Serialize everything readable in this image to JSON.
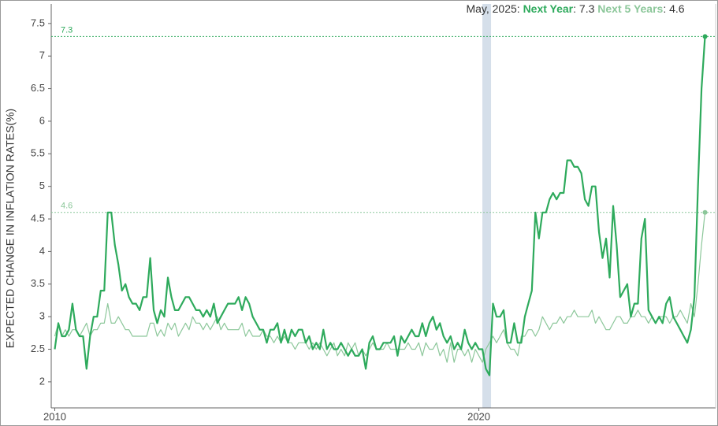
{
  "chart_data": {
    "type": "line",
    "y_label": "EXPECTED CHANGE IN INFLATION RATES(%)",
    "tooltip_date": "May, 2025",
    "x": [
      "2010-01",
      "2010-02",
      "2010-03",
      "2010-04",
      "2010-05",
      "2010-06",
      "2010-07",
      "2010-08",
      "2010-09",
      "2010-10",
      "2010-11",
      "2010-12",
      "2011-01",
      "2011-02",
      "2011-03",
      "2011-04",
      "2011-05",
      "2011-06",
      "2011-07",
      "2011-08",
      "2011-09",
      "2011-10",
      "2011-11",
      "2011-12",
      "2012-01",
      "2012-02",
      "2012-03",
      "2012-04",
      "2012-05",
      "2012-06",
      "2012-07",
      "2012-08",
      "2012-09",
      "2012-10",
      "2012-11",
      "2012-12",
      "2013-01",
      "2013-02",
      "2013-03",
      "2013-04",
      "2013-05",
      "2013-06",
      "2013-07",
      "2013-08",
      "2013-09",
      "2013-10",
      "2013-11",
      "2013-12",
      "2014-01",
      "2014-02",
      "2014-03",
      "2014-04",
      "2014-05",
      "2014-06",
      "2014-07",
      "2014-08",
      "2014-09",
      "2014-10",
      "2014-11",
      "2014-12",
      "2015-01",
      "2015-02",
      "2015-03",
      "2015-04",
      "2015-05",
      "2015-06",
      "2015-07",
      "2015-08",
      "2015-09",
      "2015-10",
      "2015-11",
      "2015-12",
      "2016-01",
      "2016-02",
      "2016-03",
      "2016-04",
      "2016-05",
      "2016-06",
      "2016-07",
      "2016-08",
      "2016-09",
      "2016-10",
      "2016-11",
      "2016-12",
      "2017-01",
      "2017-02",
      "2017-03",
      "2017-04",
      "2017-05",
      "2017-06",
      "2017-07",
      "2017-08",
      "2017-09",
      "2017-10",
      "2017-11",
      "2017-12",
      "2018-01",
      "2018-02",
      "2018-03",
      "2018-04",
      "2018-05",
      "2018-06",
      "2018-07",
      "2018-08",
      "2018-09",
      "2018-10",
      "2018-11",
      "2018-12",
      "2019-01",
      "2019-02",
      "2019-03",
      "2019-04",
      "2019-05",
      "2019-06",
      "2019-07",
      "2019-08",
      "2019-09",
      "2019-10",
      "2019-11",
      "2019-12",
      "2020-01",
      "2020-02",
      "2020-03",
      "2020-04",
      "2020-05",
      "2020-06",
      "2020-07",
      "2020-08",
      "2020-09",
      "2020-10",
      "2020-11",
      "2020-12",
      "2021-01",
      "2021-02",
      "2021-03",
      "2021-04",
      "2021-05",
      "2021-06",
      "2021-07",
      "2021-08",
      "2021-09",
      "2021-10",
      "2021-11",
      "2021-12",
      "2022-01",
      "2022-02",
      "2022-03",
      "2022-04",
      "2022-05",
      "2022-06",
      "2022-07",
      "2022-08",
      "2022-09",
      "2022-10",
      "2022-11",
      "2022-12",
      "2023-01",
      "2023-02",
      "2023-03",
      "2023-04",
      "2023-05",
      "2023-06",
      "2023-07",
      "2023-08",
      "2023-09",
      "2023-10",
      "2023-11",
      "2023-12",
      "2024-01",
      "2024-02",
      "2024-03",
      "2024-04",
      "2024-05",
      "2024-06",
      "2024-07",
      "2024-08",
      "2024-09",
      "2024-10",
      "2024-11",
      "2024-12",
      "2025-01",
      "2025-02",
      "2025-03",
      "2025-04",
      "2025-05"
    ],
    "series": [
      {
        "name": "Next Year",
        "color": "#2eaa5c",
        "width": 2.2,
        "values": [
          2.5,
          2.9,
          2.7,
          2.7,
          2.8,
          3.2,
          2.8,
          2.7,
          2.7,
          2.2,
          2.7,
          3.0,
          3.0,
          3.4,
          3.4,
          4.6,
          4.6,
          4.1,
          3.8,
          3.4,
          3.5,
          3.3,
          3.2,
          3.2,
          3.1,
          3.3,
          3.3,
          3.9,
          3.1,
          2.9,
          3.1,
          3.0,
          3.6,
          3.3,
          3.1,
          3.1,
          3.2,
          3.3,
          3.3,
          3.2,
          3.1,
          3.1,
          3.0,
          3.1,
          3.0,
          3.2,
          2.9,
          3.0,
          3.1,
          3.2,
          3.2,
          3.2,
          3.3,
          3.1,
          3.3,
          3.2,
          3.0,
          2.9,
          2.8,
          2.8,
          2.6,
          2.8,
          2.8,
          2.9,
          2.6,
          2.8,
          2.6,
          2.8,
          2.7,
          2.8,
          2.8,
          2.6,
          2.7,
          2.5,
          2.6,
          2.5,
          2.8,
          2.5,
          2.6,
          2.5,
          2.5,
          2.6,
          2.5,
          2.4,
          2.5,
          2.4,
          2.4,
          2.5,
          2.2,
          2.6,
          2.7,
          2.5,
          2.5,
          2.6,
          2.6,
          2.6,
          2.7,
          2.4,
          2.7,
          2.6,
          2.7,
          2.8,
          2.7,
          2.7,
          2.9,
          2.7,
          2.9,
          3.0,
          2.8,
          2.9,
          2.7,
          2.6,
          2.7,
          2.5,
          2.6,
          2.5,
          2.8,
          2.6,
          2.5,
          2.6,
          2.5,
          2.5,
          2.2,
          2.1,
          3.2,
          3.0,
          3.0,
          3.1,
          2.6,
          2.6,
          2.9,
          2.6,
          2.6,
          3.0,
          3.2,
          3.4,
          4.6,
          4.2,
          4.6,
          4.6,
          4.8,
          4.9,
          4.8,
          4.9,
          4.9,
          5.4,
          5.4,
          5.3,
          5.3,
          5.2,
          4.8,
          4.7,
          5.0,
          5.0,
          4.3,
          3.9,
          4.2,
          3.6,
          4.7,
          4.1,
          3.3,
          3.4,
          3.5,
          3.0,
          3.2,
          3.2,
          4.2,
          4.5,
          3.1,
          3.0,
          2.9,
          3.0,
          2.9,
          3.2,
          3.3,
          3.0,
          2.9,
          2.8,
          2.7,
          2.6,
          2.8,
          3.3,
          5.0,
          6.5,
          7.3
        ]
      },
      {
        "name": "Next 5 Years",
        "color": "#8cc79a",
        "width": 1.2,
        "values": [
          2.7,
          2.9,
          2.7,
          2.8,
          2.7,
          2.8,
          2.8,
          2.7,
          2.8,
          2.9,
          2.7,
          2.8,
          2.8,
          2.9,
          2.9,
          3.2,
          2.9,
          2.9,
          3.0,
          2.9,
          2.8,
          2.8,
          2.7,
          2.7,
          2.7,
          2.7,
          2.7,
          2.9,
          2.9,
          2.7,
          2.8,
          2.7,
          2.9,
          2.8,
          2.9,
          2.7,
          2.8,
          2.9,
          2.8,
          3.0,
          2.9,
          2.9,
          2.8,
          2.9,
          2.8,
          2.9,
          3.0,
          2.8,
          2.9,
          2.8,
          2.8,
          2.8,
          2.8,
          2.9,
          2.7,
          2.8,
          2.7,
          2.7,
          2.7,
          2.8,
          2.7,
          2.7,
          2.6,
          2.7,
          2.6,
          2.7,
          2.6,
          2.6,
          2.5,
          2.6,
          2.6,
          2.6,
          2.5,
          2.6,
          2.5,
          2.6,
          2.5,
          2.4,
          2.5,
          2.6,
          2.4,
          2.5,
          2.4,
          2.6,
          2.5,
          2.6,
          2.4,
          2.5,
          2.4,
          2.5,
          2.6,
          2.5,
          2.5,
          2.5,
          2.6,
          2.5,
          2.5,
          2.5,
          2.5,
          2.5,
          2.6,
          2.5,
          2.5,
          2.6,
          2.4,
          2.6,
          2.5,
          2.5,
          2.6,
          2.4,
          2.5,
          2.3,
          2.6,
          2.3,
          2.5,
          2.5,
          2.4,
          2.5,
          2.3,
          2.5,
          2.4,
          2.3,
          2.5,
          2.6,
          2.7,
          2.6,
          2.7,
          2.8,
          2.6,
          2.5,
          2.5,
          2.4,
          2.7,
          2.7,
          2.8,
          2.8,
          2.7,
          2.8,
          3.0,
          2.9,
          2.8,
          2.9,
          2.9,
          3.0,
          2.9,
          3.0,
          3.0,
          3.1,
          3.0,
          3.0,
          3.0,
          3.0,
          3.1,
          2.9,
          3.0,
          2.9,
          2.8,
          2.8,
          2.9,
          3.0,
          3.0,
          2.9,
          2.9,
          3.0,
          3.0,
          3.1,
          3.0,
          3.0,
          2.9,
          3.0,
          2.9,
          3.0,
          3.0,
          3.0,
          2.9,
          3.0,
          3.0,
          3.1,
          3.0,
          2.9,
          3.2,
          3.0,
          3.5,
          4.1,
          4.6
        ]
      }
    ],
    "shaded": {
      "from": "2020-02",
      "to": "2020-04",
      "color": "#d5dfea"
    },
    "xlim": [
      "2009-12",
      "2025-08"
    ],
    "xticks": [
      {
        "value": "2010-01",
        "label": "2010"
      },
      {
        "value": "2020-01",
        "label": "2020"
      }
    ],
    "ylim": [
      1.6,
      7.8
    ],
    "yticks": [
      2,
      2.5,
      3,
      3.5,
      4,
      4.5,
      5,
      5.5,
      6,
      6.5,
      7,
      7.5
    ]
  }
}
